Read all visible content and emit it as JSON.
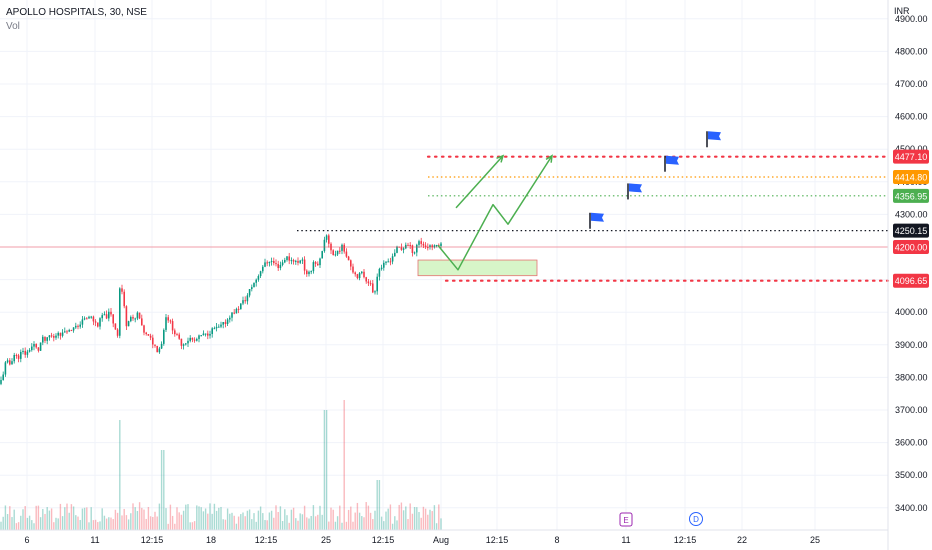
{
  "legend": {
    "symbol": "APOLLO HOSPITALS, 30, NSE",
    "volume_label": "Vol"
  },
  "price_axis": {
    "currency": "INR"
  },
  "chart_data": {
    "type": "candlestick",
    "title": "APOLLO HOSPITALS, 30, NSE",
    "ylim": [
      3350,
      4980
    ],
    "y_ticks": [
      3400,
      3500,
      3600,
      3700,
      3800,
      3900,
      4000,
      4100,
      4200,
      4300,
      4400,
      4500,
      4600,
      4700,
      4800,
      4900
    ],
    "y_tick_labels": [
      "3400.00",
      "3500.00",
      "3600.00",
      "3700.00",
      "3800.00",
      "3900.00",
      "4000.00",
      "4100.00",
      "4200.00",
      "4300.00",
      "4400.00",
      "4500.00",
      "4600.00",
      "4700.00",
      "4800.00",
      "4900.00"
    ],
    "x_tick_labels": [
      "6",
      "11",
      "12:15",
      "18",
      "12:15",
      "25",
      "12:15",
      "Aug",
      "12:15",
      "8",
      "11",
      "12:15",
      "22",
      "25"
    ],
    "price_path": [
      [
        0,
        3780
      ],
      [
        3,
        3810
      ],
      [
        6,
        3850
      ],
      [
        10,
        3840
      ],
      [
        14,
        3870
      ],
      [
        18,
        3860
      ],
      [
        22,
        3880
      ],
      [
        26,
        3870
      ],
      [
        30,
        3890
      ],
      [
        34,
        3900
      ],
      [
        38,
        3880
      ],
      [
        42,
        3920
      ],
      [
        46,
        3910
      ],
      [
        50,
        3930
      ],
      [
        54,
        3920
      ],
      [
        58,
        3940
      ],
      [
        62,
        3930
      ],
      [
        66,
        3950
      ],
      [
        70,
        3940
      ],
      [
        74,
        3960
      ],
      [
        78,
        3950
      ],
      [
        82,
        3980
      ],
      [
        86,
        3975
      ],
      [
        90,
        3990
      ],
      [
        94,
        3970
      ],
      [
        98,
        3960
      ],
      [
        102,
        3990
      ],
      [
        106,
        3985
      ],
      [
        110,
        4000
      ],
      [
        114,
        3960
      ],
      [
        118,
        3930
      ],
      [
        120,
        4090
      ],
      [
        123,
        4050
      ],
      [
        126,
        3960
      ],
      [
        130,
        3990
      ],
      [
        134,
        3970
      ],
      [
        138,
        4000
      ],
      [
        142,
        3950
      ],
      [
        146,
        3930
      ],
      [
        150,
        3920
      ],
      [
        154,
        3900
      ],
      [
        158,
        3880
      ],
      [
        162,
        3910
      ],
      [
        166,
        3990
      ],
      [
        170,
        3970
      ],
      [
        174,
        3940
      ],
      [
        178,
        3920
      ],
      [
        182,
        3900
      ],
      [
        186,
        3910
      ],
      [
        190,
        3920
      ],
      [
        194,
        3910
      ],
      [
        198,
        3920
      ],
      [
        202,
        3930
      ],
      [
        206,
        3930
      ],
      [
        210,
        3940
      ],
      [
        214,
        3950
      ],
      [
        218,
        3950
      ],
      [
        222,
        3960
      ],
      [
        226,
        3970
      ],
      [
        230,
        3990
      ],
      [
        234,
        4000
      ],
      [
        238,
        4010
      ],
      [
        242,
        4030
      ],
      [
        246,
        4040
      ],
      [
        250,
        4070
      ],
      [
        254,
        4090
      ],
      [
        258,
        4110
      ],
      [
        262,
        4140
      ],
      [
        266,
        4150
      ],
      [
        270,
        4160
      ],
      [
        274,
        4150
      ],
      [
        278,
        4140
      ],
      [
        282,
        4150
      ],
      [
        286,
        4170
      ],
      [
        290,
        4160
      ],
      [
        294,
        4160
      ],
      [
        298,
        4150
      ],
      [
        302,
        4170
      ],
      [
        306,
        4110
      ],
      [
        310,
        4120
      ],
      [
        314,
        4160
      ],
      [
        318,
        4140
      ],
      [
        322,
        4180
      ],
      [
        326,
        4240
      ],
      [
        330,
        4200
      ],
      [
        334,
        4170
      ],
      [
        338,
        4190
      ],
      [
        342,
        4200
      ],
      [
        346,
        4180
      ],
      [
        350,
        4150
      ],
      [
        354,
        4120
      ],
      [
        358,
        4110
      ],
      [
        362,
        4120
      ],
      [
        366,
        4100
      ],
      [
        370,
        4090
      ],
      [
        374,
        4050
      ],
      [
        378,
        4130
      ],
      [
        382,
        4140
      ],
      [
        386,
        4150
      ],
      [
        390,
        4160
      ],
      [
        394,
        4180
      ],
      [
        398,
        4200
      ],
      [
        402,
        4190
      ],
      [
        406,
        4210
      ],
      [
        410,
        4200
      ],
      [
        414,
        4180
      ],
      [
        418,
        4220
      ],
      [
        422,
        4210
      ],
      [
        426,
        4200
      ],
      [
        430,
        4205
      ],
      [
        434,
        4198
      ],
      [
        438,
        4210
      ],
      [
        442,
        4205
      ]
    ],
    "levels": [
      {
        "price": 4477.1,
        "label": "4477.10",
        "color": "#f23645",
        "style": "red-dotted"
      },
      {
        "price": 4414.8,
        "label": "4414.80",
        "color": "#ff9800",
        "style": "orange-dotted"
      },
      {
        "price": 4356.95,
        "label": "4356.95",
        "color": "#4caf50",
        "style": "green-dotted"
      },
      {
        "price": 4250.15,
        "label": "4250.15",
        "color": "#131722",
        "style": "black-dotted"
      },
      {
        "price": 4200.0,
        "label": "4200.00",
        "color": "#f23645",
        "style": "current-price"
      },
      {
        "price": 4096.65,
        "label": "4096.65",
        "color": "#f23645",
        "style": "red-dotted"
      }
    ],
    "demand_zone": {
      "price_top": 4160,
      "price_bottom": 4112
    },
    "projection_paths": [
      [
        [
          456,
          4320
        ],
        [
          503,
          4480
        ]
      ],
      [
        [
          438,
          4205
        ],
        [
          458,
          4130
        ],
        [
          493,
          4330
        ],
        [
          508,
          4270
        ],
        [
          552,
          4480
        ]
      ]
    ],
    "flags": [
      [
        596,
        4305
      ],
      [
        634,
        4395
      ],
      [
        671,
        4480
      ],
      [
        713,
        4555
      ]
    ],
    "event_markers": [
      {
        "label": "E",
        "color": "#9c27b0"
      },
      {
        "label": "D",
        "color": "#2962ff"
      }
    ],
    "colors": {
      "up": "#089981",
      "down": "#f23645",
      "projection": "#4caf50",
      "flag": "#2962ff",
      "zone_fill": "#d7f5c8",
      "zone_border": "#e57373"
    }
  }
}
